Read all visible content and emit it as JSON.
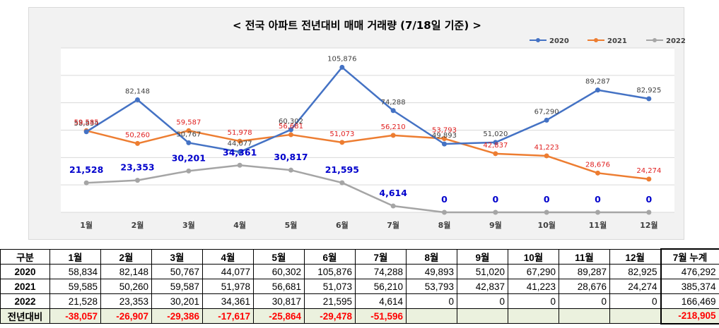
{
  "chart_data": {
    "type": "line",
    "title": "< 전국 아파트 전년대비 매매 거래량 (7/18일 기준) >",
    "categories": [
      "1월",
      "2월",
      "3월",
      "4월",
      "5월",
      "6월",
      "7월",
      "8월",
      "9월",
      "10월",
      "11월",
      "12월"
    ],
    "series": [
      {
        "name": "2020",
        "color": "#4472c4",
        "values": [
          58834,
          82148,
          50767,
          44077,
          60302,
          105876,
          74288,
          49893,
          51020,
          67290,
          89287,
          82925
        ],
        "labels": [
          "58,834",
          "82,148",
          "50,767",
          "44,077",
          "60,302",
          "105,876",
          "74,288",
          "49,893",
          "51,020",
          "67,290",
          "89,287",
          "82,925"
        ],
        "label_color": "#404040"
      },
      {
        "name": "2021",
        "color": "#ed7d31",
        "values": [
          59585,
          50260,
          59587,
          51978,
          56681,
          51073,
          56210,
          53793,
          42837,
          41223,
          28676,
          24274
        ],
        "labels": [
          "59,585",
          "50,260",
          "59,587",
          "51,978",
          "56,681",
          "51,073",
          "56,210",
          "53,793",
          "42,837",
          "41,223",
          "28,676",
          "24,274"
        ],
        "label_color": "#e02020"
      },
      {
        "name": "2022",
        "color": "#a5a5a5",
        "values": [
          21528,
          23353,
          30201,
          34361,
          30817,
          21595,
          4614,
          0,
          0,
          0,
          0,
          0
        ],
        "labels": [
          "21,528",
          "23,353",
          "30,201",
          "34,361",
          "30,817",
          "21,595",
          "4,614",
          "0",
          "0",
          "0",
          "0",
          "0"
        ],
        "label_color": "#0000cc"
      }
    ],
    "ylim": [
      0,
      120000
    ],
    "grid": true,
    "legend": "top-right",
    "xlabel": "",
    "ylabel": ""
  },
  "table": {
    "headers": [
      "구분",
      "1월",
      "2월",
      "3월",
      "4월",
      "5월",
      "6월",
      "7월",
      "8월",
      "9월",
      "10월",
      "11월",
      "12월",
      "7월 누계"
    ],
    "rows": [
      {
        "label": "2020",
        "cells": [
          "58,834",
          "82,148",
          "50,767",
          "44,077",
          "60,302",
          "105,876",
          "74,288",
          "49,893",
          "51,020",
          "67,290",
          "89,287",
          "82,925",
          "476,292"
        ]
      },
      {
        "label": "2021",
        "cells": [
          "59,585",
          "50,260",
          "59,587",
          "51,978",
          "56,681",
          "51,073",
          "56,210",
          "53,793",
          "42,837",
          "41,223",
          "28,676",
          "24,274",
          "385,374"
        ]
      },
      {
        "label": "2022",
        "cells": [
          "21,528",
          "23,353",
          "30,201",
          "34,361",
          "30,817",
          "21,595",
          "4,614",
          "0",
          "0",
          "0",
          "0",
          "0",
          "166,469"
        ]
      },
      {
        "label": "전년대비",
        "cells": [
          "-38,057",
          "-26,907",
          "-29,386",
          "-17,617",
          "-25,864",
          "-29,478",
          "-51,596",
          "",
          "",
          "",
          "",
          "",
          "-218,905"
        ]
      }
    ]
  }
}
